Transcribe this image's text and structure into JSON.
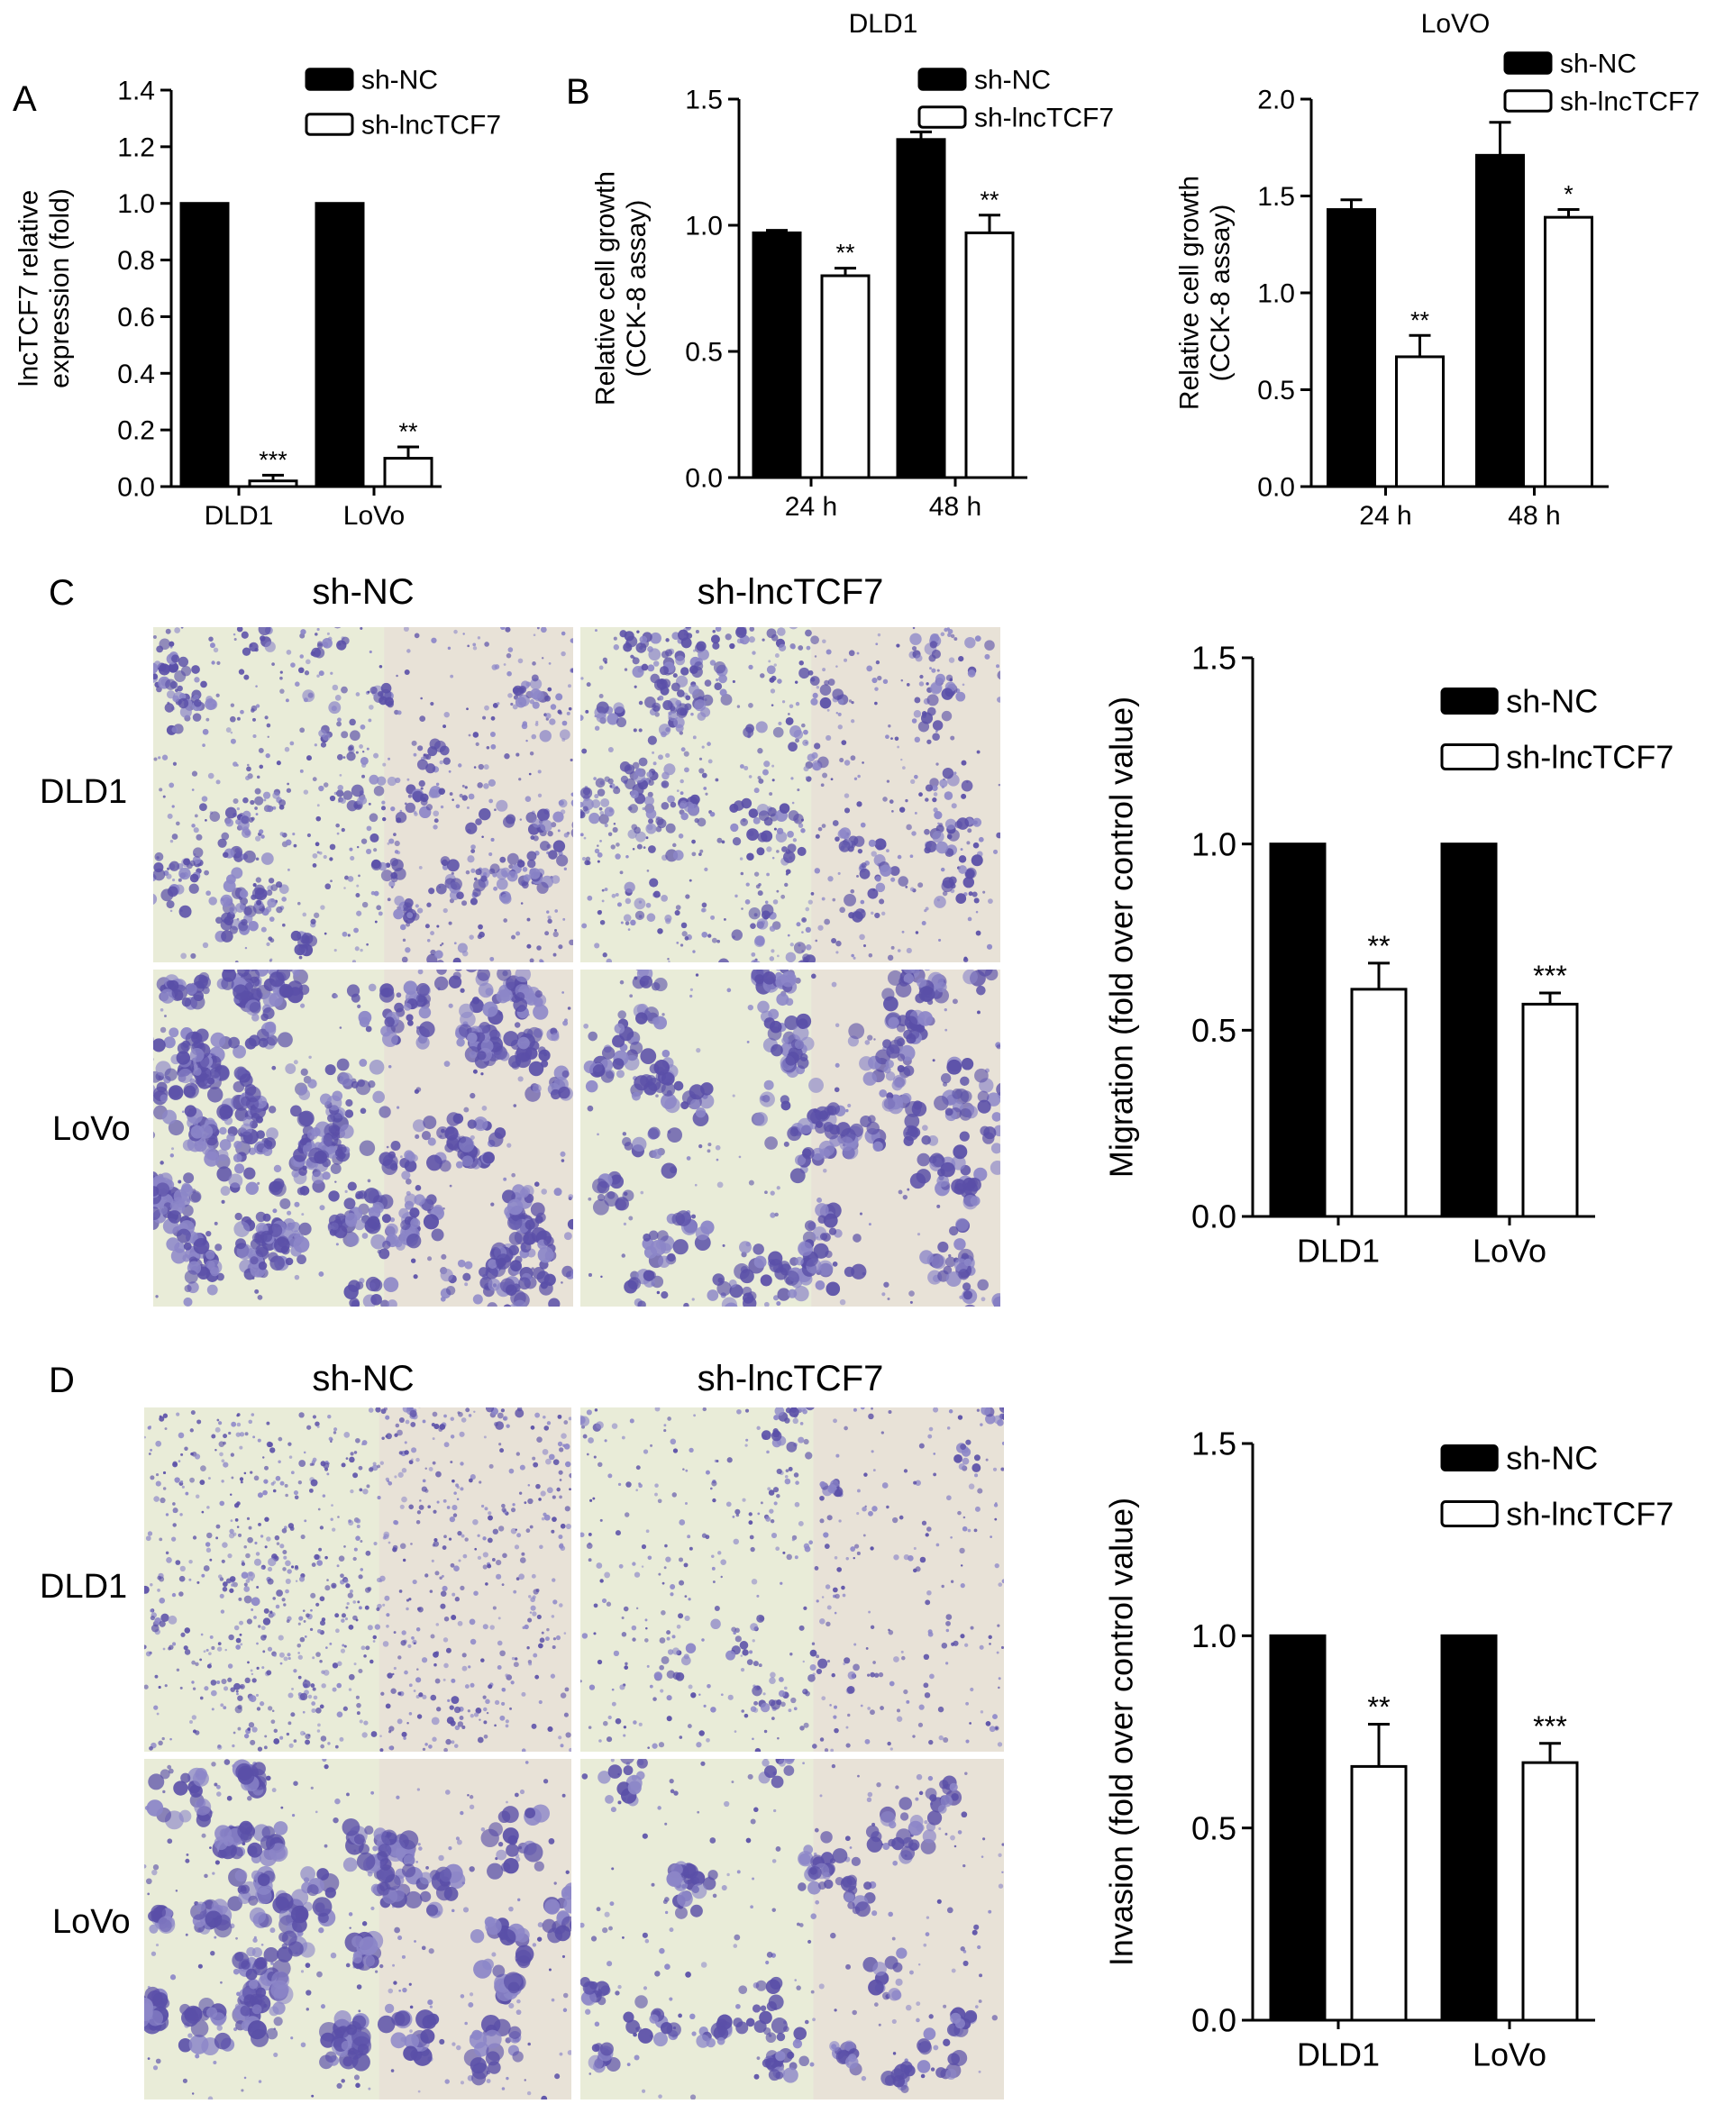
{
  "panel_labels": {
    "a": "A",
    "b": "B",
    "c": "C",
    "d": "D"
  },
  "micrographs": {
    "c": {
      "col_sh_nc": "sh-NC",
      "col_sh_lnc": "sh-lncTCF7",
      "row_dld1": "DLD1",
      "row_lovo": "LoVo"
    },
    "d": {
      "col_sh_nc": "sh-NC",
      "col_sh_lnc": "sh-lncTCF7",
      "row_dld1": "DLD1",
      "row_lovo": "LoVo"
    }
  },
  "colors": {
    "sh_nc": "#000000",
    "sh_lnc": "#ffffff",
    "stain_dark": "#5a4fa8",
    "stain_light": "#8c86c8",
    "bg_cream": "#e9ecd8"
  },
  "chart_data": [
    {
      "id": "A",
      "type": "bar",
      "title": "",
      "ylabel": [
        "lncTCF7 relative",
        "expression (fold)"
      ],
      "categories": [
        "DLD1",
        "LoVo"
      ],
      "ylim": [
        0,
        1.4
      ],
      "yticks": [
        "0.0",
        "0.2",
        "0.4",
        "0.6",
        "0.8",
        "1.0",
        "1.2",
        "1.4"
      ],
      "ytick_values": [
        0,
        0.2,
        0.4,
        0.6,
        0.8,
        1.0,
        1.2,
        1.4
      ],
      "series": [
        {
          "name": "sh-NC",
          "values": [
            1.0,
            1.0
          ],
          "errors": [
            0,
            0
          ]
        },
        {
          "name": "sh-lncTCF7",
          "values": [
            0.02,
            0.1
          ],
          "errors": [
            0.02,
            0.04
          ]
        }
      ],
      "annotations": [
        "***",
        "**"
      ],
      "legend": "top-right"
    },
    {
      "id": "B1",
      "type": "bar",
      "title": "DLD1",
      "ylabel": [
        "Relative cell growth",
        "(CCK-8 assay)"
      ],
      "categories": [
        "24 h",
        "48 h"
      ],
      "ylim": [
        0,
        1.5
      ],
      "yticks": [
        "0.0",
        "0.5",
        "1.0",
        "1.5"
      ],
      "ytick_values": [
        0,
        0.5,
        1.0,
        1.5
      ],
      "series": [
        {
          "name": "sh-NC",
          "values": [
            0.97,
            1.34
          ],
          "errors": [
            0.01,
            0.03
          ]
        },
        {
          "name": "sh-lncTCF7",
          "values": [
            0.8,
            0.97
          ],
          "errors": [
            0.03,
            0.07
          ]
        }
      ],
      "annotations": [
        "**",
        "**"
      ],
      "legend": "top-right"
    },
    {
      "id": "B2",
      "type": "bar",
      "title": "LoVO",
      "ylabel": [
        "Relative cell growth",
        "(CCK-8 assay)"
      ],
      "categories": [
        "24 h",
        "48 h"
      ],
      "ylim": [
        0,
        2.0
      ],
      "yticks": [
        "0.0",
        "0.5",
        "1.0",
        "1.5",
        "2.0"
      ],
      "ytick_values": [
        0,
        0.5,
        1.0,
        1.5,
        2.0
      ],
      "series": [
        {
          "name": "sh-NC",
          "values": [
            1.43,
            1.71
          ],
          "errors": [
            0.05,
            0.17
          ]
        },
        {
          "name": "sh-lncTCF7",
          "values": [
            0.67,
            1.39
          ],
          "errors": [
            0.11,
            0.04
          ]
        }
      ],
      "annotations": [
        "**",
        "*"
      ],
      "legend": "top-right"
    },
    {
      "id": "C",
      "type": "bar",
      "title": "",
      "ylabel": [
        "Migration (fold over control value)"
      ],
      "categories": [
        "DLD1",
        "LoVo"
      ],
      "ylim": [
        0,
        1.5
      ],
      "yticks": [
        "0.0",
        "0.5",
        "1.0",
        "1.5"
      ],
      "ytick_values": [
        0,
        0.5,
        1.0,
        1.5
      ],
      "series": [
        {
          "name": "sh-NC",
          "values": [
            1.0,
            1.0
          ],
          "errors": [
            0,
            0
          ]
        },
        {
          "name": "sh-lncTCF7",
          "values": [
            0.61,
            0.57
          ],
          "errors": [
            0.07,
            0.03
          ]
        }
      ],
      "annotations": [
        "**",
        "***"
      ],
      "legend": "top-right"
    },
    {
      "id": "D",
      "type": "bar",
      "title": "",
      "ylabel": [
        "Invasion (fold over control value)"
      ],
      "categories": [
        "DLD1",
        "LoVo"
      ],
      "ylim": [
        0,
        1.5
      ],
      "yticks": [
        "0.0",
        "0.5",
        "1.0",
        "1.5"
      ],
      "ytick_values": [
        0,
        0.5,
        1.0,
        1.5
      ],
      "series": [
        {
          "name": "sh-NC",
          "values": [
            1.0,
            1.0
          ],
          "errors": [
            0,
            0
          ]
        },
        {
          "name": "sh-lncTCF7",
          "values": [
            0.66,
            0.67
          ],
          "errors": [
            0.11,
            0.05
          ]
        }
      ],
      "annotations": [
        "**",
        "***"
      ],
      "legend": "top-right"
    }
  ]
}
